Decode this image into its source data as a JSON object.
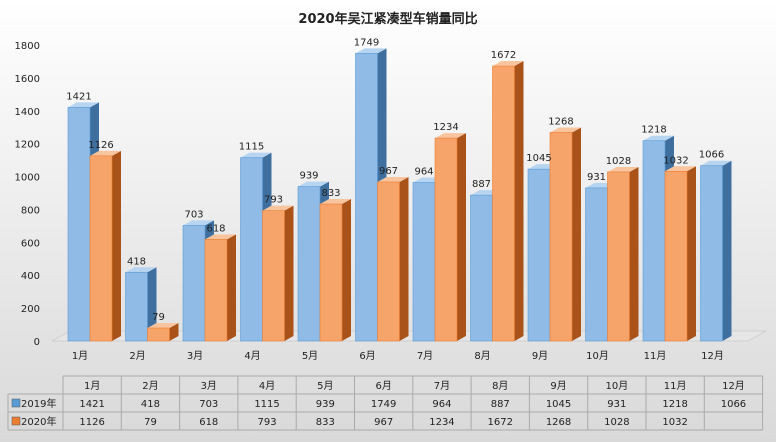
{
  "chart_data": {
    "type": "bar",
    "title": "2020年吴江紧凑型车销量同比",
    "categories": [
      "1月",
      "2月",
      "3月",
      "4月",
      "5月",
      "6月",
      "7月",
      "8月",
      "9月",
      "10月",
      "11月",
      "12月"
    ],
    "series": [
      {
        "name": "2019年",
        "color": "#5b9bd5",
        "values": [
          1421,
          418,
          703,
          1115,
          939,
          1749,
          964,
          887,
          1045,
          931,
          1218,
          1066
        ]
      },
      {
        "name": "2020年",
        "color": "#ed7d31",
        "values": [
          1126,
          79,
          618,
          793,
          833,
          967,
          1234,
          1672,
          1268,
          1028,
          1032,
          null
        ]
      }
    ],
    "ylim": [
      0,
      1800
    ],
    "yticks": [
      0,
      200,
      400,
      600,
      800,
      1000,
      1200,
      1400,
      1600,
      1800
    ],
    "grid": false,
    "legend": "data-table",
    "xlabel": "",
    "ylabel": ""
  }
}
